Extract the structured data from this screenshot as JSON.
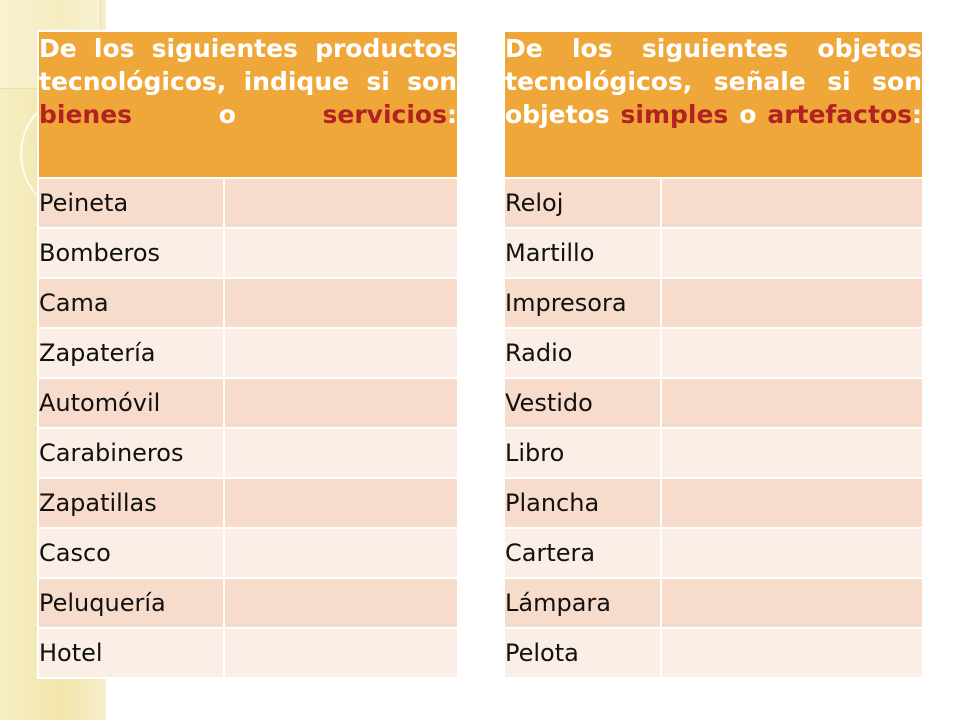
{
  "left_table": {
    "header": {
      "part1": "De los siguientes productos tecnológicos, indique si son ",
      "red1": "bienes",
      "part2": " o ",
      "red2": "servicios",
      "part3": ":"
    },
    "rows": [
      "Peineta",
      "Bomberos",
      "Cama",
      "Zapatería",
      "Automóvil",
      "Carabineros",
      "Zapatillas",
      "Casco",
      "Peluquería",
      "Hotel"
    ]
  },
  "right_table": {
    "header": {
      "part1": "De los siguientes objetos tecnológicos, señale si son objetos ",
      "red1": "simples",
      "part2": " o ",
      "red2": "artefactos",
      "part3": ":"
    },
    "rows": [
      "Reloj",
      "Martillo",
      "Impresora",
      "Radio",
      "Vestido",
      "Libro",
      "Plancha",
      "Cartera",
      "Lámpara",
      "Pelota"
    ]
  },
  "colors": {
    "header_bg": "#f0a73a",
    "header_text": "#ffffff",
    "highlight_text": "#b22222",
    "row_odd": "#f7dccb",
    "row_even": "#fbeee6"
  }
}
